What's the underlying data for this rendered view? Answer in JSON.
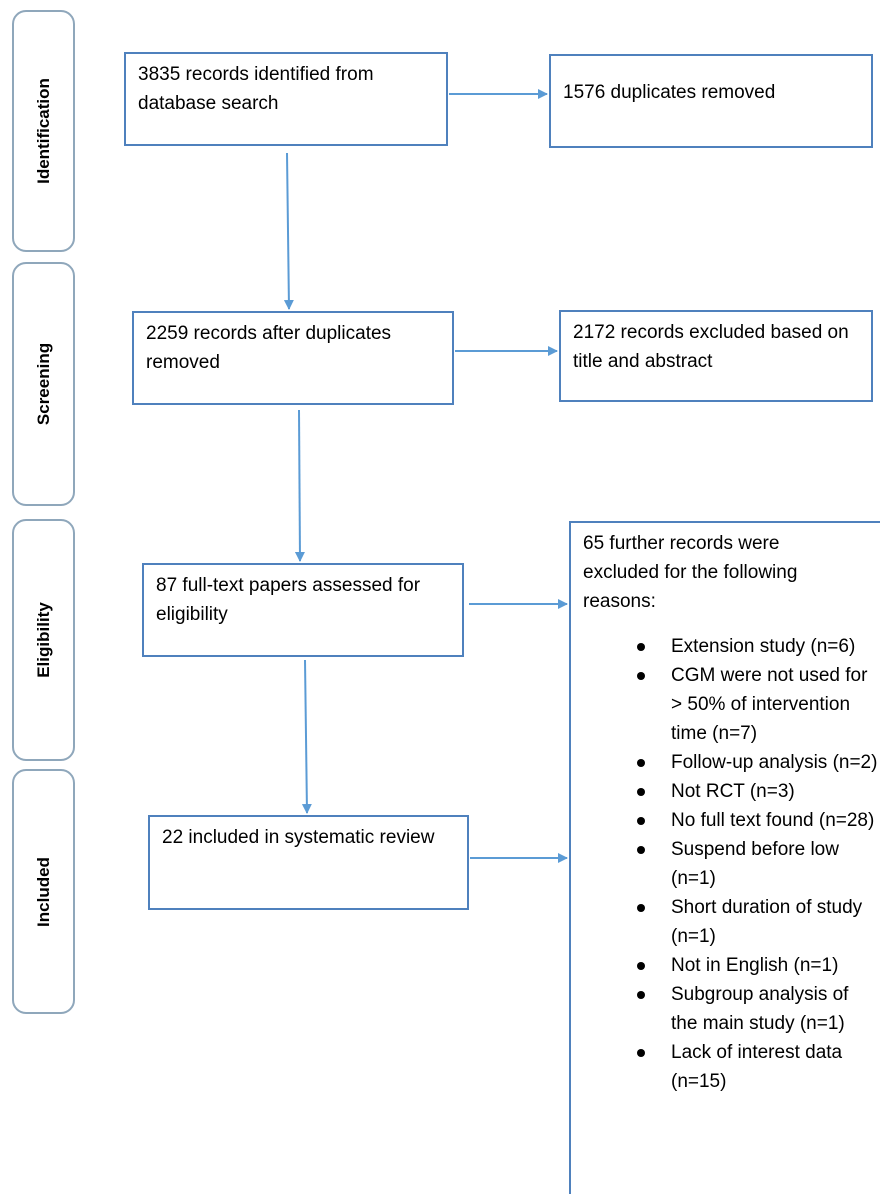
{
  "phases": [
    {
      "id": "identification",
      "label": "Identification"
    },
    {
      "id": "screening",
      "label": "Screening"
    },
    {
      "id": "eligibility",
      "label": "Eligibility"
    },
    {
      "id": "included",
      "label": "Included"
    }
  ],
  "boxes": {
    "identified": "3835 records identified from database search",
    "duplicates_removed": "1576 duplicates removed",
    "after_duplicates": "2259 records after duplicates removed",
    "excluded_title_abstract": "2172 records excluded based on title and abstract",
    "fulltext_assessed": "87 full-text papers assessed for eligibility",
    "included_review": "22 included in systematic review"
  },
  "exclusions": {
    "intro": "65 further records were excluded for the following reasons:",
    "reasons": [
      "Extension study (n=6)",
      "CGM were not used for > 50% of intervention time (n=7)",
      "Follow-up analysis (n=2)",
      "Not RCT (n=3)",
      "No full text found (n=28)",
      "Suspend before low (n=1)",
      "Short duration of study (n=1)",
      "Not in English (n=1)",
      "Subgroup analysis of the main study (n=1)",
      "Lack of interest data (n=15)"
    ]
  },
  "colors": {
    "box_border": "#4f81bd",
    "arrow": "#5b9bd5",
    "phase_border": "#8fa7bb"
  }
}
